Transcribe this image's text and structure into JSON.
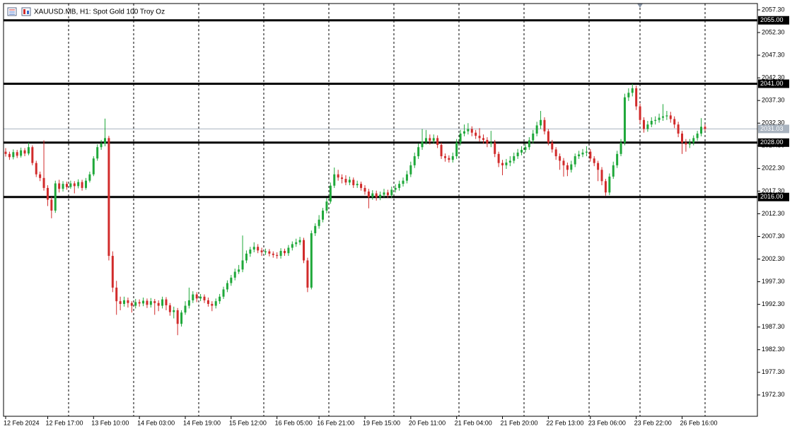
{
  "chart_data": {
    "type": "candlestick",
    "title": "XAUUSD.MB, H1:  Spot Gold 100 Troy Oz",
    "bull_color": "#1fa83a",
    "bear_color": "#d12b2b",
    "ylim": [
      1967.6,
      2058.7
    ],
    "yticks": [
      {
        "value": 2057.3,
        "label": "2057.30"
      },
      {
        "value": 2052.3,
        "label": "2052.30"
      },
      {
        "value": 2047.3,
        "label": "2047.30"
      },
      {
        "value": 2042.3,
        "label": "2042.30"
      },
      {
        "value": 2037.3,
        "label": "2037.30"
      },
      {
        "value": 2032.3,
        "label": "2032.30"
      },
      {
        "value": 2027.3,
        "label": "2027.30"
      },
      {
        "value": 2022.3,
        "label": "2022.30"
      },
      {
        "value": 2017.3,
        "label": "2017.30"
      },
      {
        "value": 2012.3,
        "label": "2012.30"
      },
      {
        "value": 2007.3,
        "label": "2007.30"
      },
      {
        "value": 2002.3,
        "label": "2002.30"
      },
      {
        "value": 1997.3,
        "label": "1997.30"
      },
      {
        "value": 1992.3,
        "label": "1992.30"
      },
      {
        "value": 1987.3,
        "label": "1987.30"
      },
      {
        "value": 1982.3,
        "label": "1982.30"
      },
      {
        "value": 1977.3,
        "label": "1977.30"
      },
      {
        "value": 1972.3,
        "label": "1972.30"
      }
    ],
    "levels": [
      {
        "value": 2055,
        "label": "2055.00"
      },
      {
        "value": 2041,
        "label": "2041.00"
      },
      {
        "value": 2028,
        "label": "2028.00"
      },
      {
        "value": 2016,
        "label": "2016.00"
      }
    ],
    "categories": [
      "12 Feb 2024",
      null,
      null,
      null,
      null,
      null,
      null,
      null,
      null,
      null,
      null,
      "12 Feb 17:00",
      null,
      null,
      null,
      null,
      null,
      null,
      null,
      null,
      null,
      null,
      null,
      "13 Feb 10:00",
      null,
      null,
      null,
      null,
      null,
      null,
      null,
      null,
      null,
      null,
      null,
      "14 Feb 03:00",
      null,
      null,
      null,
      null,
      null,
      null,
      null,
      null,
      null,
      null,
      null,
      "14 Feb 19:00",
      null,
      null,
      null,
      null,
      null,
      null,
      null,
      null,
      null,
      null,
      null,
      "15 Feb 12:00",
      null,
      null,
      null,
      null,
      null,
      null,
      null,
      null,
      null,
      null,
      null,
      "16 Feb 05:00",
      null,
      null,
      null,
      null,
      null,
      null,
      null,
      null,
      null,
      null,
      "16 Feb 21:00",
      null,
      null,
      null,
      null,
      null,
      null,
      null,
      null,
      null,
      null,
      null,
      "19 Feb 15:00",
      null,
      null,
      null,
      null,
      null,
      null,
      null,
      null,
      null,
      null,
      null,
      "20 Feb 11:00",
      null,
      null,
      null,
      null,
      null,
      null,
      null,
      null,
      null,
      null,
      null,
      "21 Feb 04:00",
      null,
      null,
      null,
      null,
      null,
      null,
      null,
      null,
      null,
      null,
      null,
      "21 Feb 20:00",
      null,
      null,
      null,
      null,
      null,
      null,
      null,
      null,
      null,
      null,
      null,
      "22 Feb 13:00",
      null,
      null,
      null,
      null,
      null,
      null,
      null,
      null,
      null,
      null,
      "23 Feb 06:00",
      null,
      null,
      null,
      null,
      null,
      null,
      null,
      null,
      null,
      null,
      null,
      "23 Feb 22:00",
      null,
      null,
      null,
      null,
      null,
      null,
      null,
      null,
      null,
      null,
      null,
      "26 Feb 16:00",
      null,
      null,
      null,
      null,
      null,
      null
    ],
    "open": [
      2026.0,
      2025.5,
      2024.8,
      2025.9,
      2025.1,
      2026.3,
      2025.6,
      2027.0,
      2023.5,
      2021.0,
      2020.2,
      2018.0,
      2015.4,
      2013.0,
      2019.0,
      2017.8,
      2018.9,
      2018.2,
      2019.0,
      2018.4,
      2019.3,
      2018.0,
      2019.6,
      2021.0,
      2024.5,
      2027.0,
      2027.8,
      2029.0,
      2003.0,
      1996.0,
      1993.0,
      1992.4,
      1993.2,
      1992.6,
      1992.0,
      1992.8,
      1992.5,
      1993.1,
      1992.2,
      1993.0,
      1992.6,
      1992.0,
      1993.4,
      1992.1,
      1990.6,
      1991.0,
      1988.0,
      1990.5,
      1992.0,
      1993.2,
      1994.5,
      1993.6,
      1994.0,
      1993.2,
      1992.4,
      1992.0,
      1993.0,
      1994.0,
      1995.6,
      1997.0,
      1998.2,
      1999.5,
      2000.0,
      2002.0,
      2003.5,
      2004.4,
      2005.0,
      2004.2,
      2003.8,
      2004.0,
      2003.5,
      2003.2,
      2003.0,
      2004.1,
      2003.6,
      2004.8,
      2005.6,
      2006.0,
      2006.5,
      2002.0,
      1996.0,
      2008.0,
      2009.6,
      2011.0,
      2013.0,
      2015.0,
      2018.5,
      2021.0,
      2020.3,
      2020.0,
      2019.2,
      2019.8,
      2018.6,
      2018.9,
      2018.0,
      2017.2,
      2016.0,
      2016.8,
      2015.9,
      2016.5,
      2017.0,
      2016.4,
      2017.6,
      2018.0,
      2018.9,
      2019.6,
      2021.0,
      2023.0,
      2025.0,
      2027.0,
      2028.2,
      2029.0,
      2028.4,
      2029.0,
      2027.5,
      2025.0,
      2024.6,
      2024.2,
      2025.0,
      2028.0,
      2030.0,
      2030.5,
      2031.0,
      2030.2,
      2029.5,
      2029.0,
      2028.6,
      2027.8,
      2028.0,
      2025.5,
      2023.5,
      2023.0,
      2023.6,
      2024.0,
      2025.0,
      2025.8,
      2026.4,
      2027.0,
      2028.5,
      2030.0,
      2031.8,
      2033.0,
      2030.5,
      2028.0,
      2026.5,
      2025.0,
      2024.0,
      2023.0,
      2022.0,
      2023.2,
      2025.0,
      2025.4,
      2025.8,
      2026.0,
      2024.5,
      2023.5,
      2022.0,
      2019.5,
      2017.0,
      2020.5,
      2023.0,
      2025.5,
      2028.0,
      2038.0,
      2039.0,
      2040.0,
      2036.0,
      2033.0,
      2031.0,
      2032.0,
      2032.8,
      2033.0,
      2033.5,
      2033.8,
      2034.0,
      2033.2,
      2032.0,
      2030.0,
      2028.0,
      2027.6,
      2028.0,
      2029.0,
      2030.0,
      2031.5
    ],
    "high": [
      2026.8,
      2026.0,
      2026.5,
      2026.4,
      2026.9,
      2026.8,
      2028.0,
      2027.4,
      2024.0,
      2021.6,
      2028.5,
      2018.6,
      2016.0,
      2019.6,
      2019.8,
      2019.5,
      2019.4,
      2019.6,
      2019.5,
      2019.9,
      2019.8,
      2020.2,
      2021.6,
      2025.0,
      2027.6,
      2028.6,
      2033.3,
      2029.5,
      2004.0,
      1997.5,
      1994.0,
      1994.0,
      1993.8,
      1993.0,
      1993.5,
      1993.4,
      1993.8,
      1993.6,
      1993.7,
      1993.5,
      1993.2,
      1994.0,
      1993.9,
      1992.6,
      1991.8,
      1991.5,
      1991.0,
      1993.0,
      1996.0,
      1995.2,
      1995.0,
      1994.6,
      1994.5,
      1993.8,
      1993.0,
      1993.6,
      1994.6,
      1996.2,
      1997.6,
      1998.8,
      2000.2,
      2001.0,
      2007.5,
      2004.2,
      2005.0,
      2006.0,
      2005.6,
      2004.8,
      2004.6,
      2004.5,
      2004.0,
      2003.8,
      2004.7,
      2004.6,
      2005.4,
      2006.2,
      2006.8,
      2007.2,
      2007.0,
      2002.6,
      2008.6,
      2010.2,
      2012.0,
      2013.6,
      2015.8,
      2019.2,
      2022.5,
      2022.0,
      2021.0,
      2020.8,
      2020.5,
      2020.3,
      2019.6,
      2019.4,
      2018.6,
      2017.8,
      2017.5,
      2017.4,
      2017.2,
      2017.8,
      2017.6,
      2018.3,
      2018.8,
      2019.6,
      2020.3,
      2021.8,
      2023.8,
      2025.8,
      2027.8,
      2031.0,
      2030.8,
      2029.8,
      2029.8,
      2029.6,
      2028.0,
      2025.6,
      2025.2,
      2025.8,
      2028.8,
      2030.8,
      2032.0,
      2032.3,
      2031.6,
      2030.8,
      2031.2,
      2029.8,
      2029.2,
      2030.6,
      2028.6,
      2026.0,
      2024.2,
      2024.4,
      2025.0,
      2025.8,
      2026.6,
      2027.2,
      2027.8,
      2029.2,
      2030.8,
      2032.6,
      2035.0,
      2033.6,
      2031.0,
      2028.6,
      2027.0,
      2025.6,
      2024.6,
      2023.6,
      2024.0,
      2025.6,
      2026.2,
      2026.6,
      2027.2,
      2026.6,
      2025.0,
      2024.0,
      2022.6,
      2020.0,
      2021.2,
      2023.8,
      2026.2,
      2028.8,
      2038.8,
      2040.0,
      2041.0,
      2040.6,
      2036.6,
      2033.6,
      2032.8,
      2033.6,
      2033.8,
      2034.4,
      2036.5,
      2035.0,
      2034.8,
      2033.8,
      2032.6,
      2030.6,
      2028.8,
      2028.8,
      2029.6,
      2030.6,
      2033.4,
      2032.0
    ],
    "low": [
      2024.9,
      2024.2,
      2024.3,
      2024.6,
      2024.7,
      2025.0,
      2025.2,
      2023.0,
      2020.4,
      2019.5,
      2017.4,
      2014.0,
      2011.3,
      2012.5,
      2017.0,
      2017.2,
      2017.6,
      2017.8,
      2016.8,
      2017.9,
      2017.4,
      2017.6,
      2019.2,
      2020.6,
      2024.0,
      2026.4,
      2027.2,
      2002.0,
      1995.0,
      1990.0,
      1991.0,
      1991.8,
      1991.6,
      1990.5,
      1991.4,
      1991.8,
      1991.9,
      1991.5,
      1991.6,
      1990.0,
      1990.8,
      1991.4,
      1991.0,
      1989.8,
      1989.2,
      1985.5,
      1987.4,
      1990.0,
      1991.4,
      1992.6,
      1992.8,
      1993.0,
      1992.6,
      1991.8,
      1990.8,
      1991.4,
      1992.4,
      1993.5,
      1995.0,
      1996.4,
      1997.6,
      1999.0,
      1999.4,
      2001.4,
      2002.8,
      2003.8,
      2003.6,
      2003.0,
      2003.2,
      2002.9,
      2002.6,
      2002.4,
      2002.4,
      2003.0,
      2003.0,
      2004.2,
      2005.0,
      2005.4,
      2001.4,
      1995.0,
      1995.6,
      2007.4,
      2009.0,
      2010.4,
      2012.4,
      2014.5,
      2018.0,
      2019.6,
      2019.0,
      2018.6,
      2018.6,
      2018.0,
      2018.0,
      2017.4,
      2016.5,
      2013.5,
      2015.4,
      2015.2,
      2015.3,
      2015.9,
      2015.8,
      2015.8,
      2017.0,
      2017.4,
      2018.3,
      2019.0,
      2020.4,
      2022.4,
      2024.4,
      2026.4,
      2027.6,
      2027.6,
      2027.8,
      2026.8,
      2024.4,
      2023.8,
      2023.6,
      2023.6,
      2024.4,
      2027.4,
      2029.4,
      2029.8,
      2029.4,
      2028.8,
      2028.2,
      2027.8,
      2027.0,
      2027.0,
      2024.8,
      2022.6,
      2020.8,
      2022.2,
      2022.8,
      2023.4,
      2024.4,
      2025.2,
      2025.8,
      2026.4,
      2027.8,
      2029.4,
      2031.0,
      2029.8,
      2027.4,
      2025.8,
      2024.2,
      2022.0,
      2020.5,
      2020.6,
      2021.4,
      2022.6,
      2024.4,
      2024.8,
      2025.0,
      2023.8,
      2022.8,
      2019.5,
      2018.6,
      2016.3,
      2016.4,
      2020.0,
      2022.4,
      2025.0,
      2027.4,
      2037.2,
      2038.2,
      2035.2,
      2032.2,
      2030.2,
      2030.4,
      2031.4,
      2032.0,
      2032.4,
      2032.8,
      2033.0,
      2032.4,
      2031.2,
      2029.2,
      2025.5,
      2026.0,
      2026.8,
      2027.4,
      2028.4,
      2029.4,
      2030.6
    ],
    "close": [
      2025.5,
      2024.8,
      2025.9,
      2025.1,
      2026.3,
      2025.6,
      2027.0,
      2023.5,
      2021.0,
      2020.2,
      2018.0,
      2015.4,
      2013.0,
      2019.0,
      2017.8,
      2018.9,
      2018.2,
      2019.0,
      2018.4,
      2019.3,
      2018.0,
      2019.6,
      2021.0,
      2024.5,
      2027.0,
      2027.8,
      2029.0,
      2003.0,
      1996.0,
      1993.0,
      1992.4,
      1993.2,
      1992.6,
      1992.0,
      1992.8,
      1992.5,
      1993.1,
      1992.2,
      1993.0,
      1992.6,
      1992.0,
      1993.4,
      1992.1,
      1990.6,
      1991.0,
      1988.0,
      1990.5,
      1992.0,
      1993.2,
      1994.5,
      1993.6,
      1994.0,
      1993.2,
      1992.4,
      1992.0,
      1993.0,
      1994.0,
      1995.6,
      1997.0,
      1998.2,
      1999.5,
      2000.0,
      2002.0,
      2003.5,
      2004.4,
      2005.0,
      2004.2,
      2003.8,
      2004.0,
      2003.5,
      2003.2,
      2003.0,
      2004.1,
      2003.6,
      2004.8,
      2005.6,
      2006.0,
      2006.5,
      2002.0,
      1996.0,
      2008.0,
      2009.6,
      2011.0,
      2013.0,
      2015.0,
      2018.5,
      2021.0,
      2020.3,
      2020.0,
      2019.2,
      2019.8,
      2018.6,
      2018.9,
      2018.0,
      2017.2,
      2016.0,
      2016.8,
      2015.9,
      2016.5,
      2017.0,
      2016.4,
      2017.6,
      2018.0,
      2018.9,
      2019.6,
      2021.0,
      2023.0,
      2025.0,
      2027.0,
      2028.2,
      2029.0,
      2028.4,
      2029.0,
      2027.5,
      2025.0,
      2024.6,
      2024.2,
      2025.0,
      2028.0,
      2030.0,
      2030.5,
      2031.0,
      2030.2,
      2029.5,
      2029.0,
      2028.6,
      2027.8,
      2028.0,
      2025.5,
      2023.5,
      2023.0,
      2023.6,
      2024.0,
      2025.0,
      2025.8,
      2026.4,
      2027.0,
      2028.5,
      2030.0,
      2031.8,
      2033.0,
      2030.5,
      2028.0,
      2026.5,
      2025.0,
      2024.0,
      2023.0,
      2022.0,
      2023.2,
      2025.0,
      2025.4,
      2025.8,
      2026.0,
      2024.5,
      2023.5,
      2022.0,
      2019.5,
      2017.0,
      2020.5,
      2023.0,
      2025.5,
      2028.0,
      2038.0,
      2039.0,
      2040.0,
      2036.0,
      2033.0,
      2031.0,
      2032.0,
      2032.8,
      2033.0,
      2033.5,
      2033.8,
      2034.0,
      2033.2,
      2032.0,
      2030.0,
      2028.0,
      2027.6,
      2028.0,
      2029.0,
      2030.0,
      2031.5,
      2031.03
    ]
  }
}
